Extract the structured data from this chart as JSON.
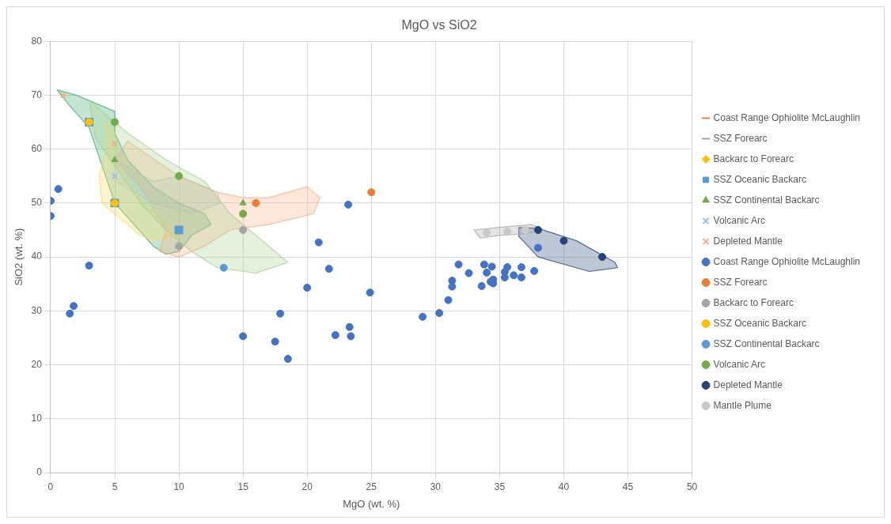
{
  "chart_data": {
    "type": "scatter",
    "title": "MgO vs SiO2",
    "xlabel": "MgO (wt. %)",
    "ylabel": "SiO2 (wt. %)",
    "xlim": [
      0,
      50
    ],
    "xticks": [
      0,
      5,
      10,
      15,
      20,
      25,
      30,
      35,
      40,
      45,
      50
    ],
    "ylim": [
      0,
      80
    ],
    "yticks": [
      0,
      10,
      20,
      30,
      40,
      50,
      60,
      70,
      80
    ],
    "grid": true,
    "legend": "right",
    "series": [
      {
        "type": "area",
        "color": "#a9d18e",
        "marker": "none",
        "x": [
          3,
          6,
          9,
          12,
          14,
          15.5,
          17.5,
          18.5,
          16,
          13,
          11,
          9,
          7,
          5,
          3.5,
          3
        ],
        "values": [
          69,
          63,
          58,
          54,
          48,
          45,
          41,
          39,
          37,
          38,
          41,
          45,
          50,
          57,
          62,
          69
        ]
      },
      {
        "type": "area",
        "color": "#f4b183",
        "marker": "none",
        "x": [
          6,
          10,
          13,
          15,
          17,
          20,
          21,
          20.5,
          17,
          14,
          12,
          10,
          8.5,
          9,
          7,
          5,
          6
        ],
        "values": [
          61.5,
          55,
          52,
          51,
          51,
          53,
          51,
          48,
          46,
          45,
          42,
          40,
          41,
          45,
          53,
          58,
          61.5
        ]
      },
      {
        "type": "area",
        "color": "#ffd966",
        "marker": "none",
        "x": [
          4.3,
          4.3,
          3.8,
          4,
          5.5,
          7,
          8,
          9,
          10,
          8.5,
          6.5,
          5.2,
          5,
          4.3
        ],
        "values": [
          65,
          60,
          55,
          50,
          47,
          44,
          43,
          43.5,
          44,
          47,
          52,
          58,
          63,
          65
        ]
      },
      {
        "type": "area",
        "color": "#b4c7e7",
        "marker": "none",
        "x": [
          5,
          8,
          10,
          13,
          13.2,
          11,
          8,
          5,
          5
        ],
        "values": [
          58,
          54,
          55,
          52,
          50,
          48,
          50,
          54,
          58
        ]
      },
      {
        "type": "area",
        "color": "#3caa6e",
        "marker": "none",
        "x": [
          0.5,
          2,
          5,
          5,
          6,
          8,
          10,
          12,
          12.5,
          11,
          10,
          9,
          8,
          6.5,
          5,
          4,
          3,
          1.5,
          0.5
        ],
        "values": [
          71,
          70,
          67,
          63,
          58,
          53,
          50,
          48,
          46,
          44,
          41,
          40.5,
          42,
          46,
          50,
          57,
          64,
          68,
          71
        ]
      },
      {
        "type": "area",
        "color": "#a5a5a5",
        "marker": "none",
        "x": [
          33,
          35,
          37.5,
          38.5,
          37,
          35,
          33.5,
          33
        ],
        "values": [
          45,
          45.5,
          46,
          45,
          44.3,
          44,
          43.5,
          45
        ]
      },
      {
        "type": "area",
        "color": "#264478",
        "marker": "none",
        "x": [
          36.5,
          38,
          41,
          44,
          44.2,
          42,
          38,
          36.5,
          36.5
        ],
        "values": [
          45.5,
          45.3,
          43,
          39,
          38,
          37.3,
          40,
          43.8,
          45.5
        ]
      },
      {
        "name": "Coast Range Ophiolite McLaughlin",
        "color": "#ed7d31",
        "marker": "dash"
      },
      {
        "name": "SSZ Forearc",
        "color": "#a5a5a5",
        "marker": "dash"
      },
      {
        "name": "Backarc to Forearc",
        "color": "#ffc000",
        "marker": "diamond"
      },
      {
        "name": "SSZ Oceanic Backarc",
        "color": "#5b9bd5",
        "marker": "square",
        "x": [
          3,
          5,
          10
        ],
        "values": [
          65,
          50,
          45
        ]
      },
      {
        "name": "SSZ Continental Backarc",
        "color": "#70ad47",
        "marker": "triangle",
        "x": [
          5,
          15
        ],
        "values": [
          58,
          50
        ]
      },
      {
        "name": "Volcanic Arc",
        "color": "#9dc3e6",
        "marker": "cross",
        "x": [
          5
        ],
        "values": [
          55
        ]
      },
      {
        "name": "Depleted Mantle",
        "color": "#f4b183",
        "marker": "cross",
        "x": [
          1,
          5
        ],
        "values": [
          70,
          61
        ]
      },
      {
        "name": "Coast Range Ophiolite McLaughlin",
        "color": "#4472c4",
        "marker": "circle",
        "x": [
          0,
          0.6,
          0,
          3,
          1.5,
          1.8,
          23.2,
          20.9,
          21.7,
          20,
          24.9,
          17.9,
          15,
          17.5,
          18.5,
          22.2,
          23.3,
          23.4,
          29,
          30.3,
          31,
          31.3,
          31.3,
          31.8,
          32.6,
          33.6,
          33.8,
          34,
          34.4,
          34.3,
          34.5,
          34.5,
          35.4,
          35.4,
          35.6,
          36.1,
          36.7,
          36.7,
          37.7,
          38
        ],
        "values": [
          50.4,
          52.6,
          47.6,
          38.4,
          29.5,
          30.9,
          49.7,
          42.7,
          37.8,
          34.3,
          33.4,
          29.5,
          25.3,
          24.3,
          21.1,
          25.5,
          27,
          25.3,
          28.9,
          29.6,
          32,
          35.6,
          34.5,
          38.6,
          37,
          34.6,
          38.6,
          37.1,
          38.2,
          35.4,
          35.8,
          35.1,
          36.2,
          37.2,
          38.1,
          36.6,
          36.2,
          38.1,
          37.4,
          41.7
        ]
      },
      {
        "name": "SSZ Forearc",
        "color": "#ed7d31",
        "marker": "circle",
        "x": [
          16,
          25
        ],
        "values": [
          50,
          52
        ]
      },
      {
        "name": "Backarc to Forearc",
        "color": "#a5a5a5",
        "marker": "circle",
        "x": [
          15,
          10
        ],
        "values": [
          45,
          42
        ]
      },
      {
        "name": "SSZ Oceanic Backarc",
        "color": "#ffc000",
        "marker": "circle",
        "x": [
          3,
          5
        ],
        "values": [
          65,
          50
        ]
      },
      {
        "name": "SSZ Continental Backarc",
        "color": "#5b9bd5",
        "marker": "circle",
        "x": [
          13.5
        ],
        "values": [
          38
        ]
      },
      {
        "name": "Volcanic Arc",
        "color": "#70ad47",
        "marker": "circle",
        "x": [
          5,
          10,
          15
        ],
        "values": [
          65,
          55,
          48
        ]
      },
      {
        "name": "Depleted Mantle",
        "color": "#264478",
        "marker": "circle",
        "x": [
          38,
          40,
          43
        ],
        "values": [
          45,
          43,
          40
        ]
      },
      {
        "name": "Mantle Plume",
        "color": "#c9c9c9",
        "marker": "circle",
        "x": [
          34,
          35.6,
          37
        ],
        "values": [
          44.5,
          44.7,
          45
        ]
      }
    ]
  }
}
